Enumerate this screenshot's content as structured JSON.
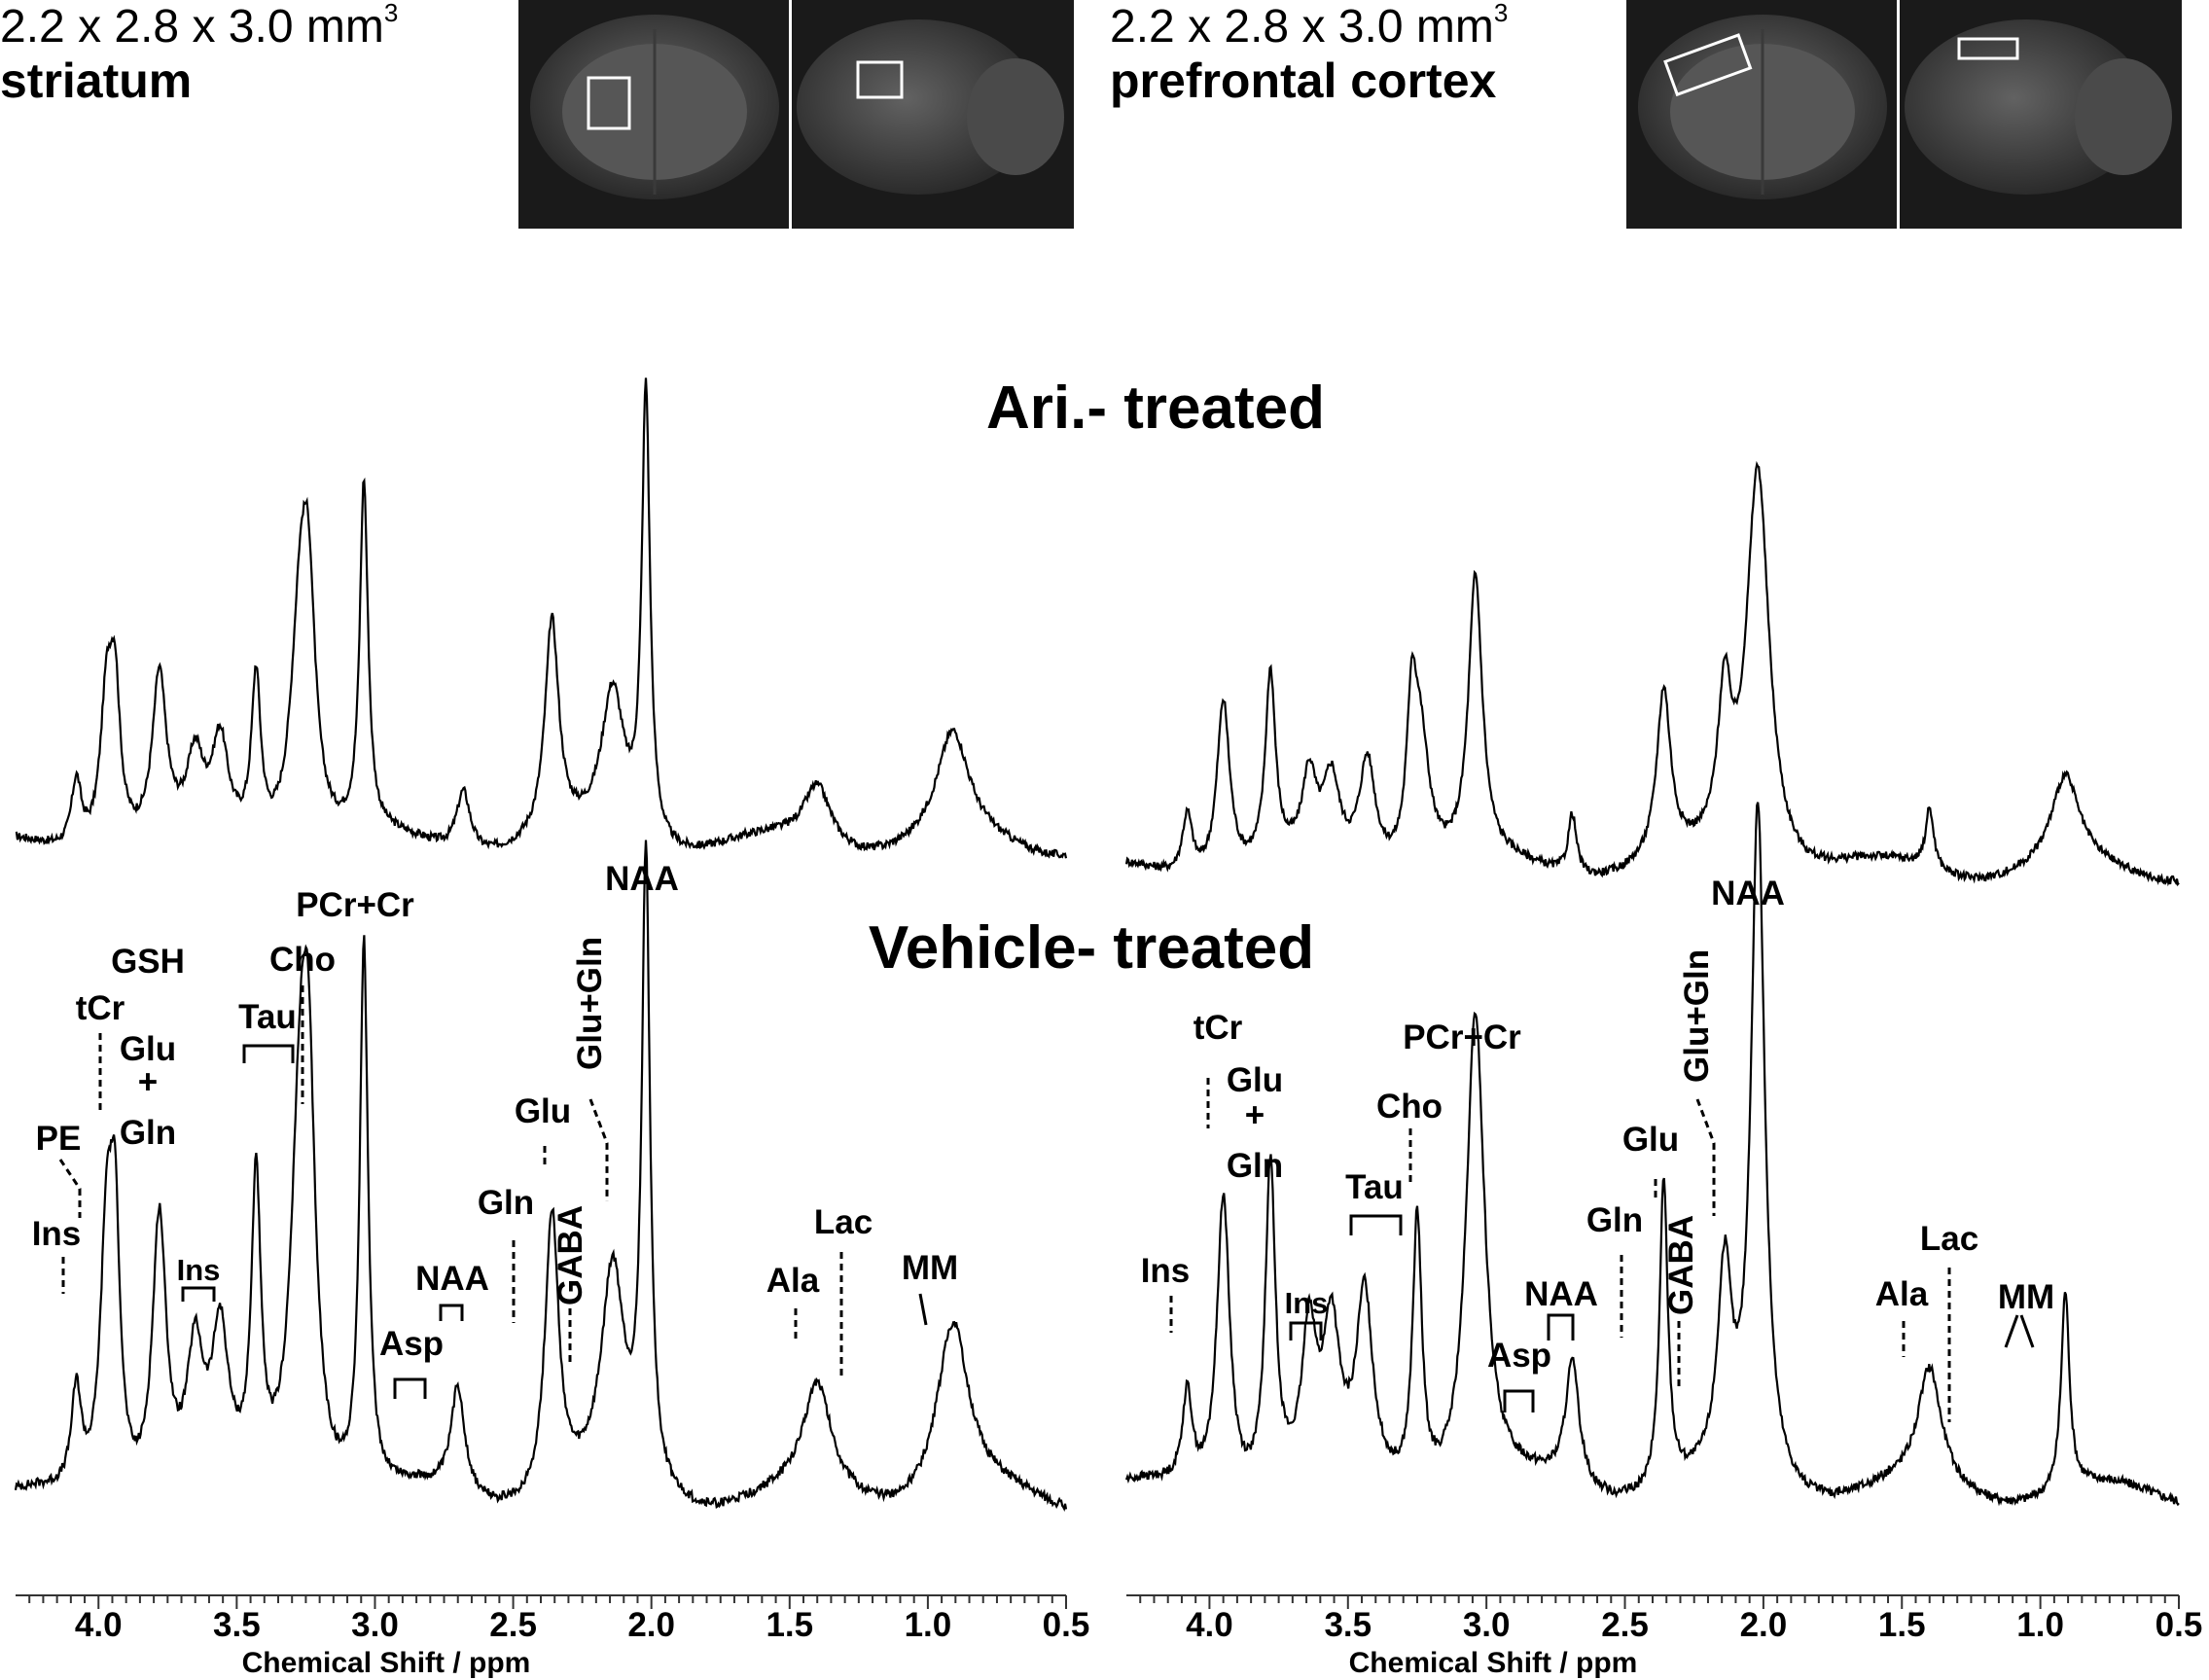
{
  "header": {
    "left": {
      "voxel_size": "2.2 x 2.8 x 3.0 mm",
      "voxel_exp": "3",
      "region": "striatum"
    },
    "right": {
      "voxel_size": "2.2 x 2.8 x 3.0 mm",
      "voxel_exp": "3",
      "region": "prefrontal cortex"
    }
  },
  "group_titles": {
    "top": "Ari.- treated",
    "bottom": "Vehicle- treated"
  },
  "axis": {
    "xlabel": "Chemical Shift / ppm",
    "ticks": [
      "4.0",
      "3.5",
      "3.0",
      "2.5",
      "2.0",
      "1.5",
      "1.0",
      "0.5"
    ]
  },
  "annotations": {
    "NAA": "NAA",
    "PCr_Cr": "PCr+Cr",
    "Cho": "Cho",
    "GSH": "GSH",
    "tCr": "tCr",
    "Glu": "Glu",
    "plus": "+",
    "Gln": "Gln",
    "Tau": "Tau",
    "PE": "PE",
    "Ins": "Ins",
    "Asp": "Asp",
    "GABA": "GABA",
    "Glu_Gln": "Glu+Gln",
    "Ala": "Ala",
    "Lac": "Lac",
    "MM": "MM"
  },
  "colors": {
    "line": "#000000",
    "background": "#ffffff",
    "mri_bg": "#1a1a1a"
  },
  "chart_data": [
    {
      "type": "line",
      "panel": "striatum",
      "xlabel": "Chemical Shift / ppm",
      "xlim": [
        4.3,
        0.5
      ],
      "x_reversed": true,
      "series": [
        {
          "name": "Ari.- treated",
          "peaks": [
            {
              "x": 4.08,
              "y": 0.1
            },
            {
              "x": 3.97,
              "y": 0.22
            },
            {
              "x": 3.94,
              "y": 0.2
            },
            {
              "x": 3.78,
              "y": 0.24
            },
            {
              "x": 3.65,
              "y": 0.11
            },
            {
              "x": 3.56,
              "y": 0.14
            },
            {
              "x": 3.43,
              "y": 0.24
            },
            {
              "x": 3.27,
              "y": 0.33
            },
            {
              "x": 3.24,
              "y": 0.28
            },
            {
              "x": 3.04,
              "y": 0.52
            },
            {
              "x": 2.68,
              "y": 0.09
            },
            {
              "x": 2.36,
              "y": 0.32
            },
            {
              "x": 2.14,
              "y": 0.22
            },
            {
              "x": 2.02,
              "y": 0.67
            },
            {
              "x": 1.4,
              "y": 0.09
            },
            {
              "x": 0.91,
              "y": 0.16
            }
          ]
        },
        {
          "name": "Vehicle- treated",
          "peaks": [
            {
              "x": 4.08,
              "y": 0.13
            },
            {
              "x": 3.97,
              "y": 0.33
            },
            {
              "x": 3.94,
              "y": 0.3
            },
            {
              "x": 3.78,
              "y": 0.36
            },
            {
              "x": 3.65,
              "y": 0.17
            },
            {
              "x": 3.56,
              "y": 0.19
            },
            {
              "x": 3.43,
              "y": 0.39
            },
            {
              "x": 3.27,
              "y": 0.46
            },
            {
              "x": 3.24,
              "y": 0.39
            },
            {
              "x": 3.04,
              "y": 0.71
            },
            {
              "x": 2.7,
              "y": 0.14
            },
            {
              "x": 2.36,
              "y": 0.37
            },
            {
              "x": 2.14,
              "y": 0.28
            },
            {
              "x": 2.02,
              "y": 0.81
            },
            {
              "x": 1.4,
              "y": 0.14
            },
            {
              "x": 0.91,
              "y": 0.23
            }
          ]
        }
      ]
    },
    {
      "type": "line",
      "panel": "prefrontal cortex",
      "xlabel": "Chemical Shift / ppm",
      "xlim": [
        4.3,
        0.5
      ],
      "x_reversed": true,
      "series": [
        {
          "name": "Ari.- treated",
          "peaks": [
            {
              "x": 4.08,
              "y": 0.09
            },
            {
              "x": 3.95,
              "y": 0.26
            },
            {
              "x": 3.78,
              "y": 0.28
            },
            {
              "x": 3.64,
              "y": 0.12
            },
            {
              "x": 3.56,
              "y": 0.12
            },
            {
              "x": 3.43,
              "y": 0.16
            },
            {
              "x": 3.27,
              "y": 0.19
            },
            {
              "x": 3.24,
              "y": 0.2
            },
            {
              "x": 3.04,
              "y": 0.42
            },
            {
              "x": 2.69,
              "y": 0.09
            },
            {
              "x": 2.36,
              "y": 0.25
            },
            {
              "x": 2.14,
              "y": 0.22
            },
            {
              "x": 2.02,
              "y": 0.6
            },
            {
              "x": 1.4,
              "y": 0.09
            },
            {
              "x": 0.91,
              "y": 0.13
            }
          ]
        },
        {
          "name": "Vehicle- treated",
          "peaks": [
            {
              "x": 4.08,
              "y": 0.12
            },
            {
              "x": 3.95,
              "y": 0.39
            },
            {
              "x": 3.78,
              "y": 0.42
            },
            {
              "x": 3.64,
              "y": 0.19
            },
            {
              "x": 3.56,
              "y": 0.19
            },
            {
              "x": 3.44,
              "y": 0.24
            },
            {
              "x": 3.25,
              "y": 0.35
            },
            {
              "x": 3.04,
              "y": 0.62
            },
            {
              "x": 2.69,
              "y": 0.16
            },
            {
              "x": 2.36,
              "y": 0.4
            },
            {
              "x": 2.14,
              "y": 0.26
            },
            {
              "x": 2.02,
              "y": 0.88
            },
            {
              "x": 1.4,
              "y": 0.15
            },
            {
              "x": 0.91,
              "y": 0.26
            }
          ]
        }
      ]
    }
  ]
}
